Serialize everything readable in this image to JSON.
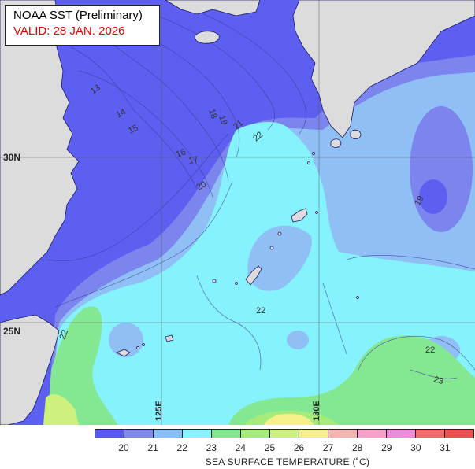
{
  "title": {
    "line1": "NOAA SST (Preliminary)",
    "line2": "VALID: 28 JAN. 2026"
  },
  "lat_labels": [
    "30N",
    "25N"
  ],
  "lon_labels": [
    "125E",
    "130E"
  ],
  "contour_labels": [
    "13",
    "14",
    "15",
    "16",
    "17",
    "18",
    "19",
    "20",
    "21",
    "22",
    "22",
    "22",
    "23",
    "22",
    "19"
  ],
  "colorbar": {
    "title": "SEA SURFACE TEMPERATURE (˚C)",
    "ticks": [
      "20",
      "21",
      "22",
      "23",
      "24",
      "25",
      "26",
      "27",
      "28",
      "29",
      "30",
      "31"
    ],
    "colors": [
      "#5a5af0",
      "#7f88ee",
      "#88bff4",
      "#88f4ff",
      "#80e890",
      "#a6ec7a",
      "#cdf07e",
      "#f6f08a",
      "#f3b5b0",
      "#f4a0c8",
      "#f08bd9",
      "#f06b6b",
      "#e85050"
    ]
  },
  "colors": {
    "land": "#dcdcdc",
    "coast": "#1a1a66",
    "grid": "#555555",
    "label_red": "#e00000"
  }
}
